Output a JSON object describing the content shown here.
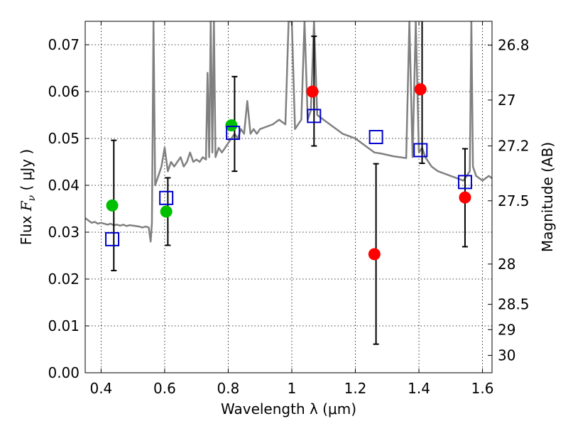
{
  "chart_data": {
    "type": "scatter",
    "title": "",
    "xlabel": "Wavelength  λ (μm)",
    "ylabel": "Flux  F_ν  ( μJy )",
    "ylabel_parts": {
      "prefix": "Flux  ",
      "symbol": "F",
      "subscript": "ν",
      "suffix": "  ( μJy )"
    },
    "y2label": "Magnitude (AB)",
    "xlim": [
      0.35,
      1.63
    ],
    "ylim": [
      0.0,
      0.075
    ],
    "xticks": [
      0.4,
      0.6,
      0.8,
      1.0,
      1.2,
      1.4,
      1.6
    ],
    "xtick_labels": [
      "0.4",
      "0.6",
      "0.8",
      "1",
      "1.2",
      "1.4",
      "1.6"
    ],
    "yticks": [
      0.0,
      0.01,
      0.02,
      0.03,
      0.04,
      0.05,
      0.06,
      0.07
    ],
    "ytick_labels": [
      "0.00",
      "0.01",
      "0.02",
      "0.03",
      "0.04",
      "0.05",
      "0.06",
      "0.07"
    ],
    "y2ticks": [
      {
        "label": "26.8",
        "flux": 0.0699
      },
      {
        "label": "27",
        "flux": 0.0582
      },
      {
        "label": "27.2",
        "flux": 0.0484
      },
      {
        "label": "27.5",
        "flux": 0.0367
      },
      {
        "label": "28",
        "flux": 0.0232
      },
      {
        "label": "28.5",
        "flux": 0.0146
      },
      {
        "label": "29",
        "flux": 0.0092
      },
      {
        "label": "30",
        "flux": 0.0037
      }
    ],
    "grid": true,
    "colors": {
      "model": "#808080",
      "green": "#00bf00",
      "red": "#ff0000",
      "squares": "#0000cc",
      "errorbars": "#000000"
    },
    "series": [
      {
        "name": "model spectrum",
        "kind": "line",
        "x": [
          0.35,
          0.36,
          0.37,
          0.38,
          0.39,
          0.4,
          0.41,
          0.42,
          0.43,
          0.44,
          0.45,
          0.46,
          0.47,
          0.48,
          0.49,
          0.5,
          0.51,
          0.52,
          0.53,
          0.54,
          0.55,
          0.556,
          0.56,
          0.565,
          0.57,
          0.58,
          0.59,
          0.6,
          0.61,
          0.62,
          0.63,
          0.64,
          0.65,
          0.66,
          0.67,
          0.68,
          0.69,
          0.7,
          0.71,
          0.72,
          0.73,
          0.735,
          0.74,
          0.745,
          0.75,
          0.755,
          0.76,
          0.77,
          0.78,
          0.79,
          0.8,
          0.81,
          0.82,
          0.83,
          0.84,
          0.85,
          0.86,
          0.87,
          0.88,
          0.89,
          0.9,
          0.92,
          0.94,
          0.96,
          0.98,
          0.99,
          1.0,
          1.01,
          1.02,
          1.03,
          1.04,
          1.05,
          1.06,
          1.07,
          1.08,
          1.1,
          1.12,
          1.14,
          1.16,
          1.18,
          1.2,
          1.22,
          1.24,
          1.26,
          1.28,
          1.3,
          1.32,
          1.34,
          1.36,
          1.37,
          1.38,
          1.39,
          1.4,
          1.41,
          1.42,
          1.44,
          1.46,
          1.48,
          1.5,
          1.52,
          1.54,
          1.55,
          1.56,
          1.565,
          1.57,
          1.58,
          1.6,
          1.62,
          1.63
        ],
        "y": [
          0.033,
          0.0325,
          0.032,
          0.0322,
          0.0318,
          0.032,
          0.0318,
          0.0316,
          0.0318,
          0.0315,
          0.0316,
          0.0314,
          0.0316,
          0.0313,
          0.0315,
          0.0314,
          0.0313,
          0.0312,
          0.031,
          0.0312,
          0.031,
          0.028,
          0.032,
          0.075,
          0.04,
          0.042,
          0.044,
          0.048,
          0.043,
          0.045,
          0.044,
          0.045,
          0.046,
          0.044,
          0.045,
          0.047,
          0.045,
          0.0455,
          0.045,
          0.046,
          0.0455,
          0.064,
          0.046,
          0.075,
          0.047,
          0.075,
          0.046,
          0.048,
          0.047,
          0.048,
          0.049,
          0.05,
          0.051,
          0.05,
          0.052,
          0.051,
          0.058,
          0.051,
          0.052,
          0.051,
          0.052,
          0.0525,
          0.053,
          0.054,
          0.053,
          0.075,
          0.075,
          0.052,
          0.053,
          0.054,
          0.075,
          0.054,
          0.056,
          0.075,
          0.055,
          0.054,
          0.053,
          0.052,
          0.051,
          0.0505,
          0.05,
          0.049,
          0.048,
          0.047,
          0.0468,
          0.0465,
          0.0462,
          0.046,
          0.0458,
          0.075,
          0.046,
          0.075,
          0.047,
          0.048,
          0.046,
          0.044,
          0.043,
          0.0425,
          0.042,
          0.0415,
          0.041,
          0.042,
          0.043,
          0.075,
          0.044,
          0.042,
          0.041,
          0.042,
          0.0415
        ]
      },
      {
        "name": "green points",
        "kind": "circle",
        "color": "#00bf00",
        "points": [
          [
            0.435,
            0.0357
          ],
          [
            0.605,
            0.0344
          ],
          [
            0.81,
            0.0528
          ]
        ]
      },
      {
        "name": "red points",
        "kind": "circle",
        "color": "#ff0000",
        "points": [
          [
            1.065,
            0.06
          ],
          [
            1.26,
            0.0253
          ],
          [
            1.405,
            0.0605
          ],
          [
            1.545,
            0.0374
          ]
        ]
      },
      {
        "name": "blue squares",
        "kind": "square",
        "color": "#0000cc",
        "points": [
          [
            0.435,
            0.0285
          ],
          [
            0.605,
            0.0373
          ],
          [
            0.815,
            0.0512
          ],
          [
            1.07,
            0.0548
          ],
          [
            1.265,
            0.0503
          ],
          [
            1.405,
            0.0475
          ],
          [
            1.545,
            0.0407
          ]
        ]
      },
      {
        "name": "error bars",
        "kind": "errorbar",
        "bars": [
          {
            "x": 0.44,
            "low": 0.0218,
            "high": 0.0496
          },
          {
            "x": 0.61,
            "low": 0.0272,
            "high": 0.0416
          },
          {
            "x": 0.82,
            "low": 0.043,
            "high": 0.0632
          },
          {
            "x": 1.07,
            "low": 0.0484,
            "high": 0.0718
          },
          {
            "x": 1.265,
            "low": 0.0061,
            "high": 0.0446
          },
          {
            "x": 1.41,
            "low": 0.0447,
            "high": 0.075
          },
          {
            "x": 1.545,
            "low": 0.0269,
            "high": 0.0478
          }
        ]
      }
    ]
  }
}
